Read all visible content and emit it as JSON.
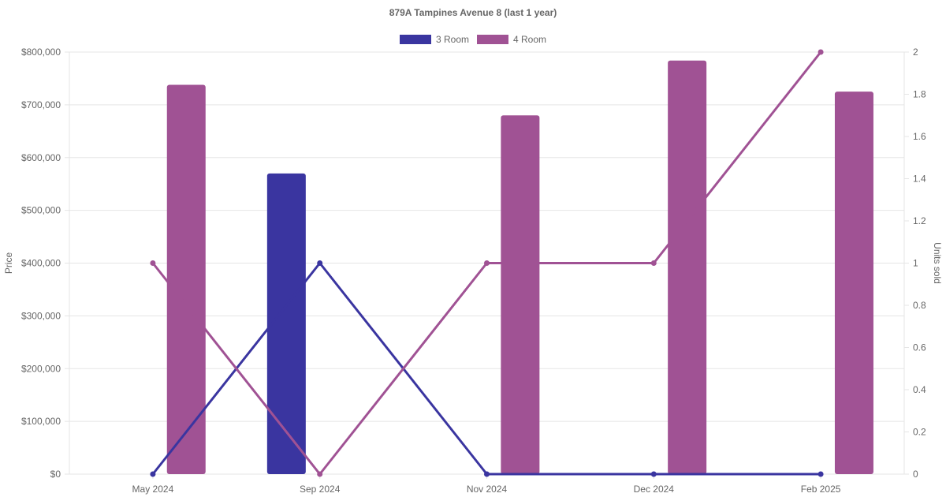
{
  "chart_data": {
    "type": "bar",
    "title": "879A Tampines Avenue 8 (last 1 year)",
    "categories": [
      "May 2024",
      "Sep 2024",
      "Nov 2024",
      "Dec 2024",
      "Feb 2025"
    ],
    "ylabel": "Price",
    "y2label": "Units sold",
    "ylim": [
      0,
      800000
    ],
    "y2lim": [
      0,
      2
    ],
    "y_ticks": [
      "$0",
      "$100,000",
      "$200,000",
      "$300,000",
      "$400,000",
      "$500,000",
      "$600,000",
      "$700,000",
      "$800,000"
    ],
    "y2_ticks": [
      "0",
      "0.2",
      "0.4",
      "0.6",
      "0.8",
      "1",
      "1.2",
      "1.4",
      "1.6",
      "1.8",
      "2"
    ],
    "grid": true,
    "legend_position": "top-center",
    "series": [
      {
        "name": "3 Room",
        "color": "#3a35a0",
        "price_bars": [
          null,
          570000,
          null,
          null,
          null
        ],
        "units_sold": [
          0,
          1,
          0,
          0,
          0
        ]
      },
      {
        "name": "4 Room",
        "color": "#a05294",
        "price_bars": [
          738000,
          null,
          680000,
          784000,
          725000
        ],
        "units_sold": [
          1,
          0,
          1,
          1,
          2
        ]
      }
    ]
  }
}
